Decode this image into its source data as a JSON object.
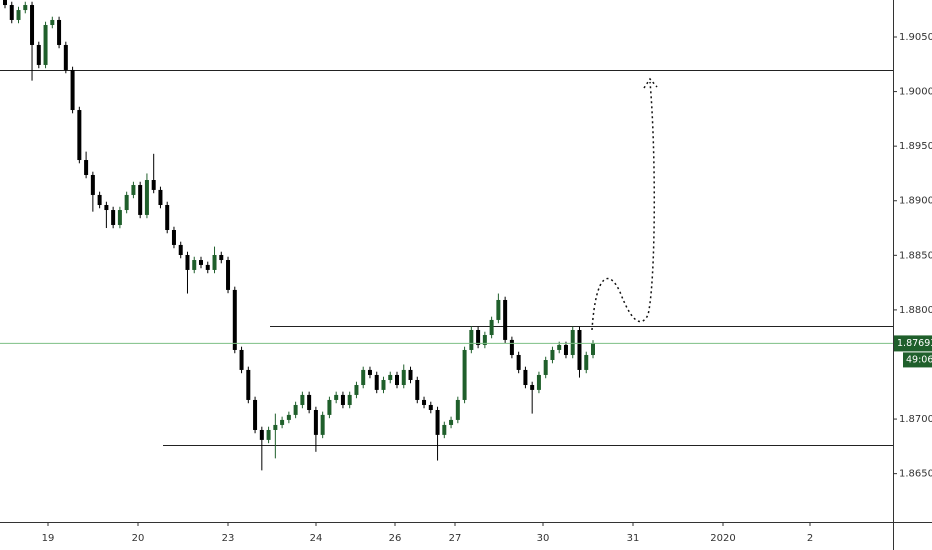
{
  "chart_data": {
    "type": "candlestick",
    "up_color": "#1f5f2b",
    "down_color": "#000000",
    "ylim": [
      1.86057,
      1.90839
    ],
    "yticks": [
      {
        "value": 1.865,
        "label": "1.86500"
      },
      {
        "value": 1.87,
        "label": "1.87000"
      },
      {
        "value": 1.88,
        "label": "1.88000"
      },
      {
        "value": 1.885,
        "label": "1.88500"
      },
      {
        "value": 1.89,
        "label": "1.89000"
      },
      {
        "value": 1.895,
        "label": "1.89500"
      },
      {
        "value": 1.9,
        "label": "1.90000"
      },
      {
        "value": 1.905,
        "label": "1.90500"
      }
    ],
    "x_labels": [
      "19",
      "20",
      "23",
      "24",
      "26",
      "27",
      "30",
      "31",
      "2020",
      "2"
    ],
    "levels": [
      1.90198,
      1.87853,
      1.86763
    ],
    "last_price": 1.87693,
    "countdown": "49:06",
    "candles": [
      [
        1.90839,
        1.90869,
        1.90763,
        1.90793
      ],
      [
        1.90793,
        1.90823,
        1.90626,
        1.90656
      ],
      [
        1.90656,
        1.90777,
        1.90626,
        1.90747
      ],
      [
        1.90747,
        1.90823,
        1.90717,
        1.90793
      ],
      [
        1.90793,
        1.90823,
        1.901,
        1.90427
      ],
      [
        1.90427,
        1.90457,
        1.90214,
        1.90244
      ],
      [
        1.90244,
        1.9064,
        1.90214,
        1.9061
      ],
      [
        1.9061,
        1.90686,
        1.9058,
        1.90656
      ],
      [
        1.90656,
        1.90686,
        1.90397,
        1.90427
      ],
      [
        1.90427,
        1.90457,
        1.90168,
        1.90198
      ],
      [
        1.90198,
        1.90228,
        1.89801,
        1.89831
      ],
      [
        1.89831,
        1.89861,
        1.89343,
        1.89373
      ],
      [
        1.89373,
        1.8945,
        1.89206,
        1.89236
      ],
      [
        1.89236,
        1.89266,
        1.889,
        1.89053
      ],
      [
        1.89053,
        1.89083,
        1.88931,
        1.88961
      ],
      [
        1.88961,
        1.88991,
        1.8875,
        1.88915
      ],
      [
        1.88915,
        1.88945,
        1.88748,
        1.88778
      ],
      [
        1.88778,
        1.88945,
        1.88748,
        1.88915
      ],
      [
        1.88915,
        1.89083,
        1.88885,
        1.89053
      ],
      [
        1.89053,
        1.89174,
        1.89023,
        1.89144
      ],
      [
        1.89144,
        1.89174,
        1.8884,
        1.8887
      ],
      [
        1.8887,
        1.8925,
        1.8884,
        1.8919
      ],
      [
        1.8919,
        1.8943,
        1.89069,
        1.89099
      ],
      [
        1.89099,
        1.89129,
        1.88931,
        1.88961
      ],
      [
        1.88961,
        1.88991,
        1.88702,
        1.88732
      ],
      [
        1.88732,
        1.88762,
        1.88565,
        1.88595
      ],
      [
        1.88595,
        1.88625,
        1.88473,
        1.88503
      ],
      [
        1.88503,
        1.88533,
        1.8815,
        1.88366
      ],
      [
        1.88366,
        1.88487,
        1.88336,
        1.88457
      ],
      [
        1.88457,
        1.88487,
        1.88382,
        1.88412
      ],
      [
        1.88412,
        1.88442,
        1.88336,
        1.88366
      ],
      [
        1.88366,
        1.8858,
        1.88336,
        1.88503
      ],
      [
        1.88503,
        1.88533,
        1.88427,
        1.88457
      ],
      [
        1.88457,
        1.88487,
        1.88153,
        1.88183
      ],
      [
        1.88183,
        1.88213,
        1.87603,
        1.87633
      ],
      [
        1.87633,
        1.87663,
        1.8742,
        1.8745
      ],
      [
        1.8745,
        1.8748,
        1.87145,
        1.87175
      ],
      [
        1.87175,
        1.87205,
        1.8687,
        1.869
      ],
      [
        1.869,
        1.8693,
        1.8653,
        1.86809
      ],
      [
        1.86809,
        1.8693,
        1.86779,
        1.869
      ],
      [
        1.869,
        1.8705,
        1.8664,
        1.86946
      ],
      [
        1.86946,
        1.87022,
        1.86916,
        1.86992
      ],
      [
        1.86992,
        1.87068,
        1.86962,
        1.87038
      ],
      [
        1.87038,
        1.87159,
        1.87008,
        1.87129
      ],
      [
        1.87129,
        1.87251,
        1.87099,
        1.87221
      ],
      [
        1.87221,
        1.87251,
        1.87053,
        1.87083
      ],
      [
        1.87083,
        1.87113,
        1.867,
        1.86855
      ],
      [
        1.86855,
        1.87068,
        1.86825,
        1.87038
      ],
      [
        1.87038,
        1.87205,
        1.87008,
        1.87175
      ],
      [
        1.87175,
        1.87251,
        1.87145,
        1.87221
      ],
      [
        1.87221,
        1.87251,
        1.87099,
        1.87129
      ],
      [
        1.87129,
        1.87251,
        1.87099,
        1.87221
      ],
      [
        1.87221,
        1.87342,
        1.87191,
        1.87312
      ],
      [
        1.87312,
        1.8748,
        1.87282,
        1.8745
      ],
      [
        1.8745,
        1.8748,
        1.87374,
        1.87404
      ],
      [
        1.87404,
        1.87434,
        1.87237,
        1.87267
      ],
      [
        1.87267,
        1.87388,
        1.87237,
        1.87358
      ],
      [
        1.87358,
        1.87434,
        1.87328,
        1.87404
      ],
      [
        1.87404,
        1.87434,
        1.87282,
        1.87312
      ],
      [
        1.87312,
        1.875,
        1.87282,
        1.8745
      ],
      [
        1.8745,
        1.8748,
        1.87328,
        1.87358
      ],
      [
        1.87358,
        1.87388,
        1.87145,
        1.87175
      ],
      [
        1.87175,
        1.87205,
        1.87099,
        1.87129
      ],
      [
        1.87129,
        1.87159,
        1.87053,
        1.87083
      ],
      [
        1.87083,
        1.87113,
        1.8662,
        1.86855
      ],
      [
        1.86855,
        1.86976,
        1.86825,
        1.86946
      ],
      [
        1.86946,
        1.87022,
        1.86916,
        1.86992
      ],
      [
        1.86992,
        1.87205,
        1.86962,
        1.87175
      ],
      [
        1.87175,
        1.87663,
        1.87145,
        1.87633
      ],
      [
        1.87633,
        1.8785,
        1.87603,
        1.87816
      ],
      [
        1.87816,
        1.87846,
        1.87649,
        1.87679
      ],
      [
        1.87679,
        1.878,
        1.87649,
        1.8777
      ],
      [
        1.8777,
        1.87938,
        1.8774,
        1.87908
      ],
      [
        1.87908,
        1.8815,
        1.87878,
        1.88091
      ],
      [
        1.88091,
        1.88121,
        1.87695,
        1.87725
      ],
      [
        1.87725,
        1.87755,
        1.87557,
        1.87587
      ],
      [
        1.87587,
        1.87617,
        1.8742,
        1.8745
      ],
      [
        1.8745,
        1.8748,
        1.87282,
        1.87312
      ],
      [
        1.87312,
        1.87342,
        1.8705,
        1.87267
      ],
      [
        1.87267,
        1.87434,
        1.87237,
        1.87404
      ],
      [
        1.87404,
        1.87571,
        1.87374,
        1.87541
      ],
      [
        1.87541,
        1.87663,
        1.87511,
        1.87633
      ],
      [
        1.87633,
        1.87709,
        1.87603,
        1.87679
      ],
      [
        1.87679,
        1.87709,
        1.87557,
        1.87587
      ],
      [
        1.87587,
        1.87846,
        1.87557,
        1.87816
      ],
      [
        1.87816,
        1.87846,
        1.8738,
        1.8745
      ],
      [
        1.8745,
        1.87617,
        1.8742,
        1.87587
      ],
      [
        1.87587,
        1.87723,
        1.87557,
        1.87693
      ]
    ]
  }
}
